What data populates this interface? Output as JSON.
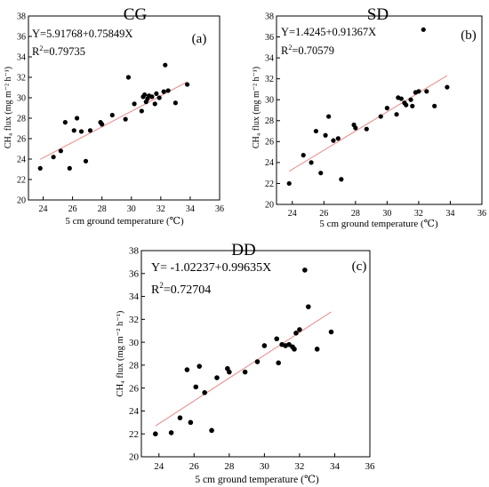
{
  "chart_data": [
    {
      "type": "scatter",
      "title": "CG",
      "panel_label": "(a)",
      "equation": "Y=5.91768+0.75849X",
      "r2_prefix": "R",
      "r2_value": "=0.79735",
      "xlabel": "5 cm ground temperature (℃)",
      "ylabel": "CH₄ flux (mg m⁻² h⁻¹)",
      "xlim": [
        23,
        36
      ],
      "ylim": [
        20,
        38
      ],
      "xticks": [
        "24",
        "26",
        "28",
        "30",
        "32",
        "34",
        "36"
      ],
      "yticks": [
        "20",
        "22",
        "24",
        "26",
        "28",
        "30",
        "32",
        "34",
        "36",
        "38"
      ],
      "fit": {
        "intercept": 5.91768,
        "slope": 0.75849,
        "x_range": [
          23.8,
          33.8
        ]
      },
      "points": [
        [
          23.8,
          23.1
        ],
        [
          24.7,
          24.2
        ],
        [
          25.2,
          24.8
        ],
        [
          25.5,
          27.6
        ],
        [
          25.8,
          23.1
        ],
        [
          26.1,
          26.8
        ],
        [
          26.3,
          28.0
        ],
        [
          26.6,
          26.7
        ],
        [
          26.9,
          23.8
        ],
        [
          27.2,
          26.8
        ],
        [
          27.9,
          27.6
        ],
        [
          28.0,
          27.4
        ],
        [
          28.7,
          28.3
        ],
        [
          29.6,
          27.9
        ],
        [
          29.8,
          32.0
        ],
        [
          30.2,
          29.4
        ],
        [
          30.7,
          28.7
        ],
        [
          30.8,
          30.1
        ],
        [
          30.9,
          30.3
        ],
        [
          31.0,
          29.6
        ],
        [
          31.1,
          29.9
        ],
        [
          31.2,
          30.2
        ],
        [
          31.4,
          30.1
        ],
        [
          31.6,
          29.4
        ],
        [
          31.7,
          30.4
        ],
        [
          31.9,
          30.0
        ],
        [
          32.2,
          30.6
        ],
        [
          32.3,
          33.2
        ],
        [
          32.5,
          30.7
        ],
        [
          33.0,
          29.5
        ],
        [
          33.8,
          31.3
        ]
      ]
    },
    {
      "type": "scatter",
      "title": "SD",
      "panel_label": "(b)",
      "equation": "Y=1.4245+0.91367X",
      "r2_prefix": "R",
      "r2_value": "=0.70579",
      "xlabel": "5 cm ground temperature (℃)",
      "ylabel": "CH₄ flux (mg m⁻² h⁻¹)",
      "xlim": [
        23,
        36
      ],
      "ylim": [
        20,
        38
      ],
      "xticks": [
        "24",
        "26",
        "28",
        "30",
        "32",
        "34",
        "36"
      ],
      "yticks": [
        "20",
        "22",
        "24",
        "26",
        "28",
        "30",
        "32",
        "34",
        "36",
        "38"
      ],
      "fit": {
        "intercept": 1.4245,
        "slope": 0.91367,
        "x_range": [
          23.8,
          33.8
        ]
      },
      "points": [
        [
          23.8,
          22.0
        ],
        [
          24.7,
          24.7
        ],
        [
          25.2,
          24.0
        ],
        [
          25.5,
          27.0
        ],
        [
          25.8,
          23.0
        ],
        [
          26.1,
          26.6
        ],
        [
          26.3,
          28.4
        ],
        [
          26.6,
          26.1
        ],
        [
          26.9,
          26.3
        ],
        [
          27.1,
          22.4
        ],
        [
          27.9,
          27.6
        ],
        [
          28.0,
          27.3
        ],
        [
          28.7,
          27.2
        ],
        [
          29.6,
          28.4
        ],
        [
          30.0,
          29.2
        ],
        [
          30.6,
          28.6
        ],
        [
          30.7,
          30.2
        ],
        [
          30.9,
          30.1
        ],
        [
          31.1,
          29.7
        ],
        [
          31.2,
          29.5
        ],
        [
          31.5,
          30.0
        ],
        [
          31.8,
          30.7
        ],
        [
          32.0,
          30.8
        ],
        [
          32.3,
          36.7
        ],
        [
          32.5,
          30.8
        ],
        [
          33.0,
          29.4
        ],
        [
          33.8,
          31.2
        ],
        [
          31.6,
          29.4
        ]
      ]
    },
    {
      "type": "scatter",
      "title": "DD",
      "panel_label": "(c)",
      "equation": "Y= -1.02237+0.99635X",
      "r2_prefix": "R",
      "r2_value": "=0.72704",
      "xlabel": "5 cm ground temperature (℃)",
      "ylabel": "CH₄ flux (mg m⁻² h⁻¹)",
      "xlim": [
        23,
        36
      ],
      "ylim": [
        20,
        38
      ],
      "xticks": [
        "24",
        "26",
        "28",
        "30",
        "32",
        "34",
        "36"
      ],
      "yticks": [
        "20",
        "22",
        "24",
        "26",
        "28",
        "30",
        "32",
        "34",
        "36",
        "38"
      ],
      "fit": {
        "intercept": -1.02237,
        "slope": 0.99635,
        "x_range": [
          23.8,
          33.8
        ]
      },
      "points": [
        [
          23.8,
          22.0
        ],
        [
          24.7,
          22.1
        ],
        [
          25.2,
          23.4
        ],
        [
          25.6,
          27.6
        ],
        [
          25.8,
          23.0
        ],
        [
          26.1,
          26.1
        ],
        [
          26.3,
          27.9
        ],
        [
          26.6,
          25.6
        ],
        [
          27.0,
          22.3
        ],
        [
          27.3,
          26.9
        ],
        [
          27.9,
          27.7
        ],
        [
          28.0,
          27.4
        ],
        [
          28.9,
          27.4
        ],
        [
          29.6,
          28.3
        ],
        [
          30.0,
          29.7
        ],
        [
          30.7,
          30.3
        ],
        [
          30.8,
          28.2
        ],
        [
          31.0,
          29.8
        ],
        [
          31.2,
          29.7
        ],
        [
          31.4,
          29.8
        ],
        [
          31.6,
          29.6
        ],
        [
          31.8,
          30.8
        ],
        [
          32.0,
          31.1
        ],
        [
          32.3,
          36.3
        ],
        [
          32.5,
          33.1
        ],
        [
          33.0,
          29.4
        ],
        [
          33.8,
          30.9
        ],
        [
          31.7,
          29.4
        ]
      ]
    }
  ]
}
